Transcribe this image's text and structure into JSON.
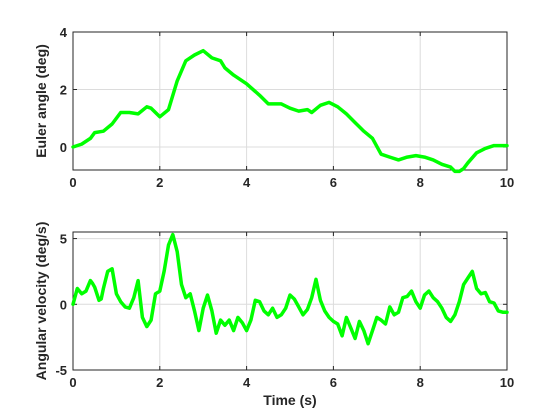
{
  "figure": {
    "background": "#ffffff",
    "line_color": "#00ff00"
  },
  "chart_data": [
    {
      "type": "line",
      "title": "",
      "xlabel": "",
      "ylabel": "Euler angle (deg)",
      "xlim": [
        0,
        10
      ],
      "ylim": [
        -0.8,
        4
      ],
      "xticks": [
        0,
        2,
        4,
        6,
        8,
        10
      ],
      "yticks": [
        0,
        2,
        4
      ],
      "grid": true,
      "series": [
        {
          "color": "#00ff00",
          "x": [
            0,
            0.2,
            0.4,
            0.5,
            0.7,
            0.9,
            1.1,
            1.3,
            1.5,
            1.7,
            1.8,
            2.0,
            2.2,
            2.4,
            2.6,
            2.8,
            3.0,
            3.2,
            3.4,
            3.5,
            3.7,
            4.0,
            4.3,
            4.5,
            4.8,
            5.0,
            5.2,
            5.4,
            5.5,
            5.7,
            5.9,
            6.1,
            6.3,
            6.5,
            6.7,
            6.9,
            7.1,
            7.3,
            7.5,
            7.7,
            7.9,
            8.1,
            8.3,
            8.5,
            8.7,
            8.8,
            8.9,
            9.0,
            9.1,
            9.3,
            9.5,
            9.7,
            9.9,
            10.0
          ],
          "y": [
            0,
            0.1,
            0.3,
            0.5,
            0.55,
            0.8,
            1.2,
            1.2,
            1.15,
            1.4,
            1.35,
            1.05,
            1.3,
            2.3,
            3.0,
            3.2,
            3.35,
            3.1,
            3.0,
            2.75,
            2.5,
            2.2,
            1.8,
            1.5,
            1.5,
            1.35,
            1.25,
            1.3,
            1.2,
            1.45,
            1.55,
            1.4,
            1.15,
            0.85,
            0.55,
            0.3,
            -0.25,
            -0.35,
            -0.45,
            -0.35,
            -0.3,
            -0.35,
            -0.45,
            -0.6,
            -0.7,
            -0.85,
            -0.85,
            -0.75,
            -0.55,
            -0.2,
            -0.05,
            0.05,
            0.05,
            0.05
          ]
        }
      ]
    },
    {
      "type": "line",
      "title": "",
      "xlabel": "Time (s)",
      "ylabel": "Angular velocity (deg/s)",
      "xlim": [
        0,
        10
      ],
      "ylim": [
        -5,
        5.5
      ],
      "xticks": [
        0,
        2,
        4,
        6,
        8,
        10
      ],
      "yticks": [
        -5,
        0,
        5
      ],
      "grid": true,
      "series": [
        {
          "color": "#00ff00",
          "x": [
            0,
            0.1,
            0.2,
            0.3,
            0.4,
            0.45,
            0.5,
            0.6,
            0.65,
            0.7,
            0.8,
            0.9,
            1.0,
            1.1,
            1.2,
            1.3,
            1.4,
            1.5,
            1.6,
            1.7,
            1.8,
            1.9,
            2.0,
            2.1,
            2.2,
            2.3,
            2.4,
            2.5,
            2.6,
            2.7,
            2.8,
            2.9,
            3.0,
            3.1,
            3.2,
            3.3,
            3.4,
            3.5,
            3.6,
            3.7,
            3.8,
            3.9,
            4.0,
            4.1,
            4.2,
            4.3,
            4.4,
            4.5,
            4.6,
            4.7,
            4.8,
            4.9,
            5.0,
            5.1,
            5.2,
            5.3,
            5.4,
            5.5,
            5.6,
            5.7,
            5.8,
            5.9,
            6.0,
            6.1,
            6.2,
            6.3,
            6.4,
            6.5,
            6.6,
            6.7,
            6.8,
            6.9,
            7.0,
            7.1,
            7.2,
            7.3,
            7.4,
            7.5,
            7.6,
            7.7,
            7.8,
            7.9,
            8.0,
            8.1,
            8.2,
            8.3,
            8.4,
            8.5,
            8.6,
            8.7,
            8.8,
            8.9,
            9.0,
            9.1,
            9.2,
            9.3,
            9.4,
            9.5,
            9.6,
            9.7,
            9.8,
            9.9,
            10.0
          ],
          "y": [
            0,
            1.2,
            0.8,
            1.0,
            1.8,
            1.6,
            1.3,
            0.3,
            0.4,
            1.2,
            2.5,
            2.7,
            0.8,
            0.2,
            -0.2,
            -0.3,
            0.5,
            1.8,
            -1.0,
            -1.7,
            -1.2,
            0.8,
            1.0,
            2.5,
            4.5,
            5.3,
            4.0,
            1.5,
            0.5,
            0.8,
            -0.5,
            -2.0,
            -0.3,
            0.7,
            -0.5,
            -2.2,
            -1.2,
            -1.6,
            -1.2,
            -2.0,
            -1.0,
            -1.4,
            -2.0,
            -1.2,
            0.3,
            0.2,
            -0.5,
            -0.8,
            -0.3,
            -1.0,
            -0.8,
            -0.3,
            0.7,
            0.4,
            -0.2,
            -0.8,
            -0.4,
            0.5,
            1.9,
            0.3,
            -0.5,
            -1.0,
            -1.3,
            -1.5,
            -2.4,
            -1.0,
            -1.8,
            -2.6,
            -1.3,
            -2.0,
            -3.0,
            -2.0,
            -1.0,
            -1.2,
            -1.5,
            -0.2,
            -0.8,
            -0.6,
            0.5,
            0.6,
            1.0,
            0.2,
            -0.3,
            0.7,
            1.0,
            0.5,
            0.2,
            -0.3,
            -1.0,
            -1.3,
            -0.8,
            0.2,
            1.5,
            2.0,
            2.5,
            1.2,
            0.8,
            0.9,
            0.2,
            0.1,
            -0.5,
            -0.6,
            -0.6
          ]
        }
      ]
    }
  ]
}
